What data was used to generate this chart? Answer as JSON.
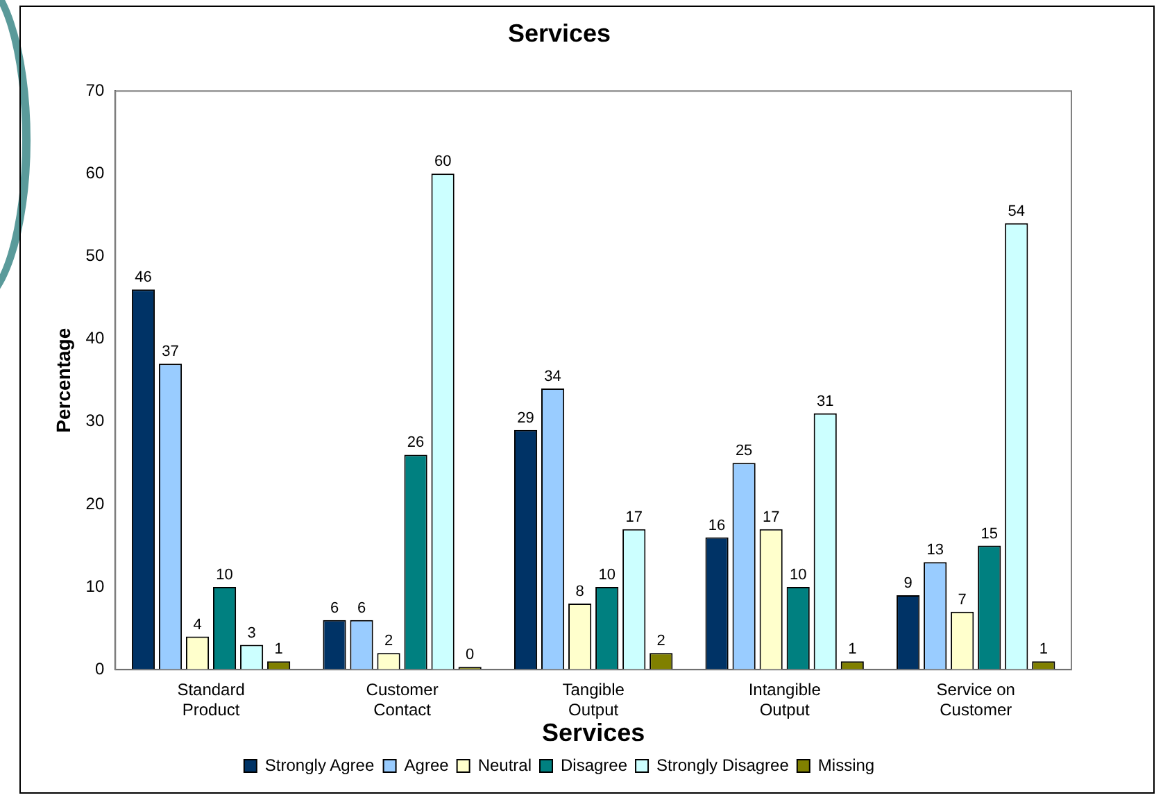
{
  "chart_data": {
    "type": "bar",
    "title": "Services",
    "xlabel": "Services",
    "ylabel": "Percentage",
    "categories": [
      "Standard Product",
      "Customer Contact",
      "Tangible Output",
      "Intangible Output",
      "Service on Customer"
    ],
    "series": [
      {
        "name": "Strongly Agree",
        "color": "#003366",
        "values": [
          46,
          6,
          29,
          16,
          9
        ]
      },
      {
        "name": "Agree",
        "color": "#99ccff",
        "values": [
          37,
          6,
          34,
          25,
          13
        ]
      },
      {
        "name": "Neutral",
        "color": "#ffffcc",
        "values": [
          4,
          2,
          8,
          17,
          7
        ]
      },
      {
        "name": "Disagree",
        "color": "#008080",
        "values": [
          10,
          26,
          10,
          10,
          15
        ]
      },
      {
        "name": "Strongly Disagree",
        "color": "#ccffff",
        "values": [
          3,
          60,
          17,
          31,
          54
        ]
      },
      {
        "name": "Missing",
        "color": "#808000",
        "values": [
          1,
          0,
          2,
          1,
          1
        ]
      }
    ],
    "ylim": [
      0,
      70
    ],
    "yticks": [
      0,
      10,
      20,
      30,
      40,
      50,
      60,
      70
    ],
    "grid": false,
    "legend": "bottom",
    "data_labels": true
  }
}
